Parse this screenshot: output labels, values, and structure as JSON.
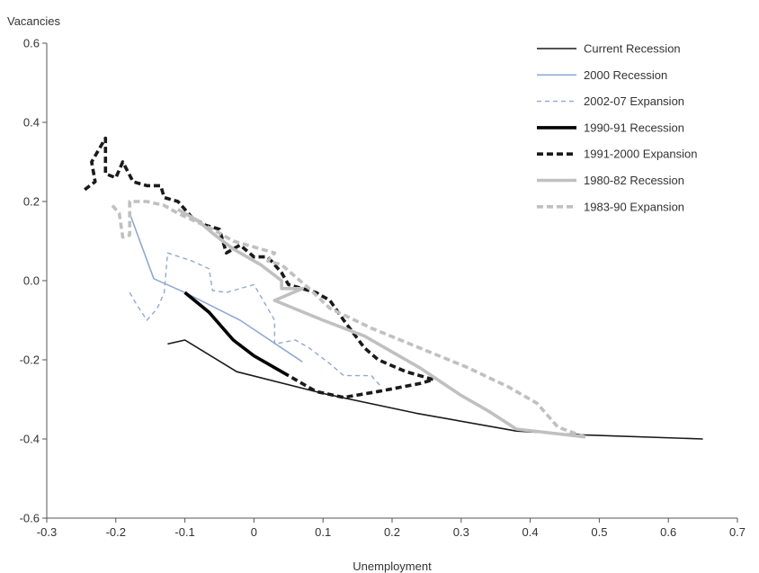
{
  "chart_data": {
    "type": "line",
    "ylabel": "Vacancies",
    "xlabel": "Unemployment",
    "xlim": [
      -0.3,
      0.7
    ],
    "ylim": [
      -0.6,
      0.6
    ],
    "x_ticks": [
      "-0.3",
      "-0.2",
      "-0.1",
      "0",
      "0.1",
      "0.2",
      "0.3",
      "0.4",
      "0.5",
      "0.6",
      "0.7"
    ],
    "y_ticks": [
      "0.6",
      "0.4",
      "0.2",
      "0.0",
      "-0.2",
      "-0.4",
      "-0.6"
    ],
    "legend_position": "top-right",
    "series": [
      {
        "name": "Current Recession",
        "color": "#1a1a1a",
        "width": 1.6,
        "dash": "solid",
        "points": [
          [
            -0.125,
            -0.16
          ],
          [
            -0.1,
            -0.15
          ],
          [
            -0.025,
            -0.23
          ],
          [
            0.1,
            -0.285
          ],
          [
            0.235,
            -0.335
          ],
          [
            0.38,
            -0.38
          ],
          [
            0.48,
            -0.39
          ],
          [
            0.65,
            -0.4
          ]
        ]
      },
      {
        "name": "2000 Recession",
        "color": "#8fa9d0",
        "width": 1.6,
        "dash": "solid",
        "points": [
          [
            -0.18,
            0.17
          ],
          [
            -0.145,
            0.005
          ],
          [
            -0.1,
            -0.03
          ],
          [
            -0.02,
            -0.1
          ],
          [
            0.07,
            -0.205
          ]
        ]
      },
      {
        "name": "2002-07 Expansion",
        "color": "#8fa9d0",
        "width": 1.4,
        "dash": "dashed",
        "points": [
          [
            -0.18,
            -0.03
          ],
          [
            -0.17,
            -0.06
          ],
          [
            -0.155,
            -0.1
          ],
          [
            -0.14,
            -0.07
          ],
          [
            -0.13,
            -0.03
          ],
          [
            -0.125,
            0.07
          ],
          [
            -0.09,
            0.05
          ],
          [
            -0.065,
            0.03
          ],
          [
            -0.06,
            -0.025
          ],
          [
            -0.04,
            -0.03
          ],
          [
            -0.02,
            -0.02
          ],
          [
            0.0,
            -0.01
          ],
          [
            0.03,
            -0.1
          ],
          [
            0.03,
            -0.16
          ],
          [
            0.06,
            -0.15
          ],
          [
            0.08,
            -0.17
          ],
          [
            0.11,
            -0.21
          ],
          [
            0.13,
            -0.24
          ],
          [
            0.155,
            -0.24
          ],
          [
            0.17,
            -0.24
          ],
          [
            0.185,
            -0.27
          ]
        ]
      },
      {
        "name": "1990-91 Recession",
        "color": "#000000",
        "width": 3.6,
        "dash": "solid",
        "points": [
          [
            -0.1,
            -0.03
          ],
          [
            -0.065,
            -0.08
          ],
          [
            -0.03,
            -0.15
          ],
          [
            0.0,
            -0.19
          ],
          [
            0.05,
            -0.24
          ]
        ]
      },
      {
        "name": "1991-2000 Expansion",
        "color": "#1a1a1a",
        "width": 3.6,
        "dash": "dashed",
        "points": [
          [
            -0.245,
            0.23
          ],
          [
            -0.23,
            0.25
          ],
          [
            -0.235,
            0.3
          ],
          [
            -0.225,
            0.33
          ],
          [
            -0.215,
            0.36
          ],
          [
            -0.215,
            0.27
          ],
          [
            -0.2,
            0.26
          ],
          [
            -0.19,
            0.3
          ],
          [
            -0.175,
            0.25
          ],
          [
            -0.155,
            0.24
          ],
          [
            -0.135,
            0.24
          ],
          [
            -0.13,
            0.21
          ],
          [
            -0.11,
            0.2
          ],
          [
            -0.09,
            0.16
          ],
          [
            -0.07,
            0.14
          ],
          [
            -0.05,
            0.13
          ],
          [
            -0.04,
            0.07
          ],
          [
            -0.02,
            0.09
          ],
          [
            0.0,
            0.06
          ],
          [
            0.02,
            0.06
          ],
          [
            0.04,
            0.02
          ],
          [
            0.05,
            -0.01
          ],
          [
            0.07,
            -0.02
          ],
          [
            0.09,
            -0.03
          ],
          [
            0.11,
            -0.05
          ],
          [
            0.13,
            -0.1
          ],
          [
            0.16,
            -0.17
          ],
          [
            0.18,
            -0.2
          ],
          [
            0.22,
            -0.23
          ],
          [
            0.26,
            -0.25
          ],
          [
            0.24,
            -0.26
          ],
          [
            0.18,
            -0.28
          ],
          [
            0.13,
            -0.295
          ],
          [
            0.09,
            -0.28
          ],
          [
            0.07,
            -0.26
          ],
          [
            0.06,
            -0.25
          ],
          [
            0.05,
            -0.24
          ]
        ]
      },
      {
        "name": "1980-82 Recession",
        "color": "#c0c0c0",
        "width": 3.6,
        "dash": "solid",
        "points": [
          [
            -0.11,
            0.18
          ],
          [
            -0.08,
            0.15
          ],
          [
            -0.06,
            0.12
          ],
          [
            -0.03,
            0.08
          ],
          [
            0.01,
            0.04
          ],
          [
            0.04,
            0.0
          ],
          [
            0.04,
            -0.02
          ],
          [
            0.07,
            -0.02
          ],
          [
            0.03,
            -0.05
          ],
          [
            0.1,
            -0.1
          ],
          [
            0.16,
            -0.14
          ],
          [
            0.24,
            -0.22
          ],
          [
            0.3,
            -0.29
          ],
          [
            0.34,
            -0.33
          ],
          [
            0.38,
            -0.375
          ],
          [
            0.48,
            -0.395
          ]
        ]
      },
      {
        "name": "1983-90 Expansion",
        "color": "#c0c0c0",
        "width": 3.6,
        "dash": "dashed",
        "points": [
          [
            -0.205,
            0.19
          ],
          [
            -0.195,
            0.17
          ],
          [
            -0.19,
            0.11
          ],
          [
            -0.18,
            0.115
          ],
          [
            -0.18,
            0.2
          ],
          [
            -0.155,
            0.2
          ],
          [
            -0.13,
            0.19
          ],
          [
            -0.11,
            0.17
          ],
          [
            -0.06,
            0.13
          ],
          [
            -0.03,
            0.1
          ],
          [
            -0.01,
            0.09
          ],
          [
            0.01,
            0.08
          ],
          [
            0.03,
            0.07
          ],
          [
            0.02,
            0.05
          ],
          [
            0.04,
            0.04
          ],
          [
            0.06,
            0.01
          ],
          [
            0.08,
            -0.02
          ],
          [
            0.11,
            -0.07
          ],
          [
            0.17,
            -0.12
          ],
          [
            0.24,
            -0.17
          ],
          [
            0.31,
            -0.22
          ],
          [
            0.37,
            -0.27
          ],
          [
            0.41,
            -0.31
          ],
          [
            0.44,
            -0.37
          ],
          [
            0.48,
            -0.395
          ]
        ]
      }
    ]
  }
}
